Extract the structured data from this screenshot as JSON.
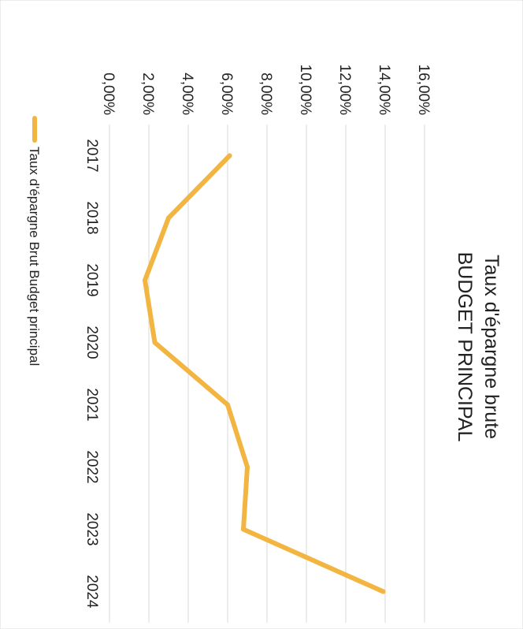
{
  "chart_data": {
    "type": "line",
    "title": [
      "Taux d'épargne brute",
      "BUDGET PRINCIPAL"
    ],
    "xlabel": "",
    "ylabel": "",
    "categories": [
      "2017",
      "2018",
      "2019",
      "2020",
      "2021",
      "2022",
      "2023",
      "2024"
    ],
    "yticks": [
      "0,00%",
      "2,00%",
      "4,00%",
      "6,00%",
      "8,00%",
      "10,00%",
      "12,00%",
      "14,00%",
      "16,00%"
    ],
    "ylim": [
      0,
      16
    ],
    "series": [
      {
        "name": "Taux d'épargne Brut Budget principal",
        "color": "#F2B541",
        "values": [
          6.1,
          3.0,
          1.8,
          2.3,
          6.0,
          7.0,
          6.8,
          13.9
        ]
      }
    ],
    "legend_position": "bottom",
    "grid": true,
    "orientation": "rotated 90° clockwise"
  }
}
